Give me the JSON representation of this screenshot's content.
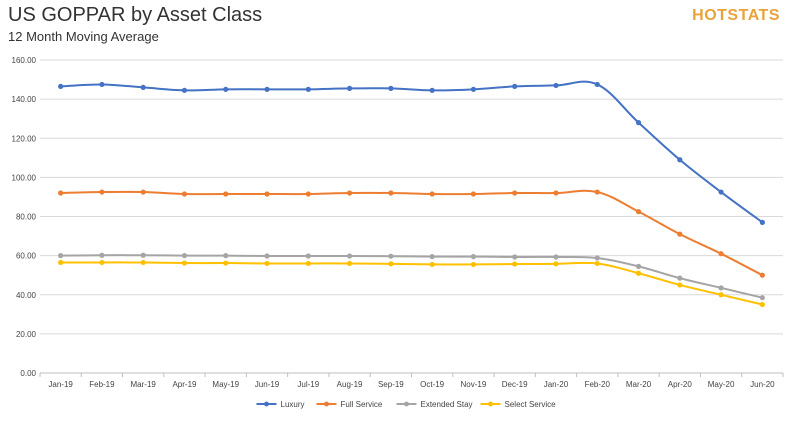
{
  "header": {
    "title": "US GOPPAR by Asset Class",
    "subtitle": "12 Month Moving Average",
    "brand": "HOTSTATS"
  },
  "chart_data": {
    "type": "line",
    "title": "US GOPPAR by Asset Class",
    "subtitle": "12 Month Moving Average",
    "xlabel": "",
    "ylabel": "",
    "categories": [
      "Jan-19",
      "Feb-19",
      "Mar-19",
      "Apr-19",
      "May-19",
      "Jun-19",
      "Jul-19",
      "Aug-19",
      "Sep-19",
      "Oct-19",
      "Nov-19",
      "Dec-19",
      "Jan-20",
      "Feb-20",
      "Mar-20",
      "Apr-20",
      "May-20",
      "Jun-20"
    ],
    "ylim": [
      0,
      160
    ],
    "yticks": [
      "0.00",
      "20.00",
      "40.00",
      "60.00",
      "80.00",
      "100.00",
      "120.00",
      "140.00",
      "160.00"
    ],
    "grid": true,
    "legend_position": "bottom",
    "series": [
      {
        "name": "Luxury",
        "color": "#4472C4",
        "values": [
          146.5,
          147.5,
          146.0,
          144.5,
          145.0,
          145.0,
          145.0,
          145.5,
          145.5,
          144.5,
          145.0,
          146.5,
          147.0,
          147.5,
          128.0,
          109.0,
          92.5,
          77.0
        ]
      },
      {
        "name": "Full Service",
        "color": "#ED7D31",
        "values": [
          92.0,
          92.5,
          92.5,
          91.5,
          91.5,
          91.5,
          91.5,
          92.0,
          92.0,
          91.5,
          91.5,
          92.0,
          92.0,
          92.5,
          82.5,
          71.0,
          61.0,
          50.0
        ]
      },
      {
        "name": "Extended Stay",
        "color": "#A5A5A5",
        "values": [
          60.0,
          60.2,
          60.2,
          60.0,
          60.0,
          59.8,
          59.8,
          59.8,
          59.7,
          59.5,
          59.5,
          59.3,
          59.3,
          58.8,
          54.5,
          48.5,
          43.5,
          38.5
        ]
      },
      {
        "name": "Select Service",
        "color": "#FFC000",
        "values": [
          56.5,
          56.5,
          56.5,
          56.2,
          56.2,
          56.0,
          56.0,
          56.0,
          55.8,
          55.5,
          55.5,
          55.7,
          55.8,
          56.0,
          51.0,
          45.0,
          40.0,
          35.0
        ]
      }
    ]
  }
}
